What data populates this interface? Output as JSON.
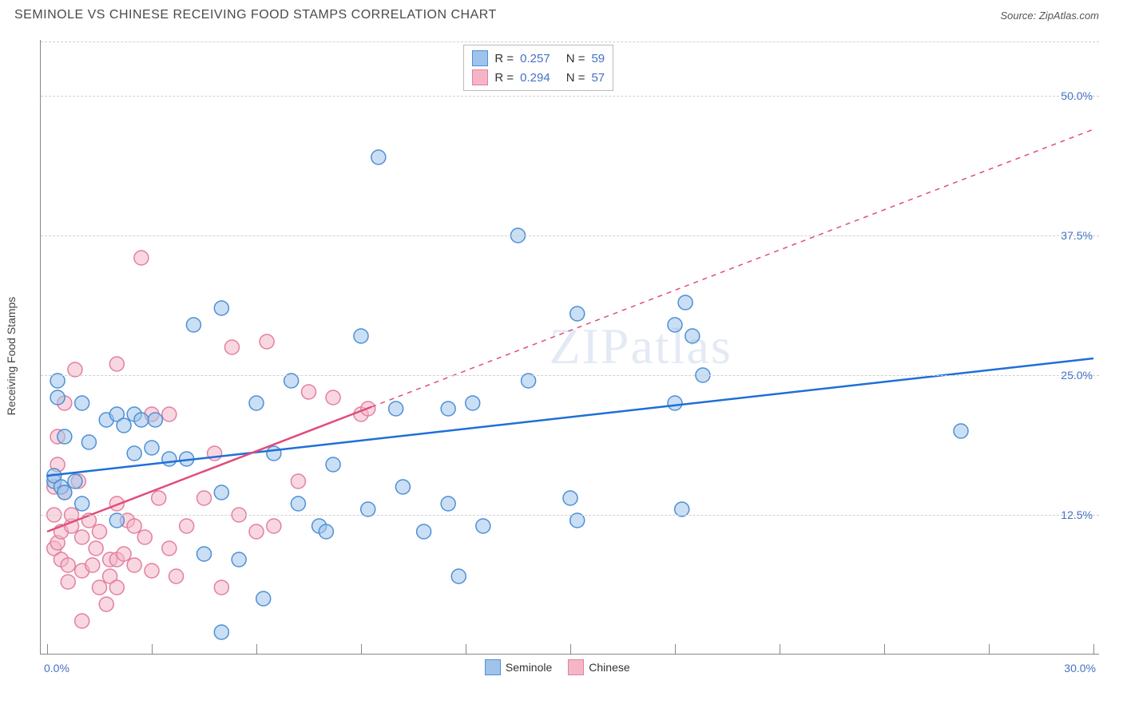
{
  "header": {
    "title": "SEMINOLE VS CHINESE RECEIVING FOOD STAMPS CORRELATION CHART",
    "source": "Source: ZipAtlas.com"
  },
  "chart": {
    "type": "scatter",
    "background_color": "#ffffff",
    "grid_color": "#d0d0d0",
    "axis_color": "#888888",
    "watermark_text": "ZIPatlas",
    "watermark_color": "rgba(130,160,210,0.22)",
    "watermark_fontsize": 64,
    "yaxis_title": "Receiving Food Stamps",
    "label_fontsize": 14,
    "tick_label_color": "#4472c4",
    "xlim": [
      0,
      30
    ],
    "ylim": [
      0,
      55
    ],
    "y_ticks": [
      {
        "v": 12.5,
        "label": "12.5%"
      },
      {
        "v": 25.0,
        "label": "25.0%"
      },
      {
        "v": 37.5,
        "label": "37.5%"
      },
      {
        "v": 50.0,
        "label": "50.0%"
      }
    ],
    "x_tick_values": [
      0,
      3,
      6,
      9,
      12,
      15,
      18,
      21,
      24,
      27,
      30
    ],
    "x_tick_labels": {
      "left": "0.0%",
      "right": "30.0%"
    },
    "marker_radius": 9,
    "marker_opacity": 0.55,
    "series": [
      {
        "name": "Seminole",
        "color_fill": "#9ec4eb",
        "color_stroke": "#4e8fd6",
        "trend_color": "#1f6fd8",
        "trend_width": 2.5,
        "trend_dash_after_x": 9999,
        "points": [
          [
            0.2,
            15.5
          ],
          [
            0.2,
            16.0
          ],
          [
            0.3,
            24.5
          ],
          [
            0.4,
            15.0
          ],
          [
            0.5,
            14.5
          ],
          [
            0.5,
            19.5
          ],
          [
            1.0,
            22.5
          ],
          [
            1.0,
            13.5
          ],
          [
            1.2,
            19.0
          ],
          [
            1.7,
            21.0
          ],
          [
            2.0,
            21.5
          ],
          [
            2.0,
            12.0
          ],
          [
            2.2,
            20.5
          ],
          [
            2.5,
            18.0
          ],
          [
            2.5,
            21.5
          ],
          [
            2.7,
            21.0
          ],
          [
            3.0,
            18.5
          ],
          [
            3.1,
            21.0
          ],
          [
            3.5,
            17.5
          ],
          [
            4.0,
            17.5
          ],
          [
            4.2,
            29.5
          ],
          [
            4.5,
            9.0
          ],
          [
            5.0,
            14.5
          ],
          [
            5.0,
            2.0
          ],
          [
            5.0,
            31.0
          ],
          [
            5.5,
            8.5
          ],
          [
            6.0,
            22.5
          ],
          [
            6.2,
            5.0
          ],
          [
            6.5,
            18.0
          ],
          [
            7.0,
            24.5
          ],
          [
            7.2,
            13.5
          ],
          [
            7.8,
            11.5
          ],
          [
            8.0,
            11.0
          ],
          [
            8.2,
            17.0
          ],
          [
            9.0,
            28.5
          ],
          [
            9.2,
            13.0
          ],
          [
            9.5,
            44.5
          ],
          [
            10.0,
            22.0
          ],
          [
            10.2,
            15.0
          ],
          [
            10.8,
            11.0
          ],
          [
            11.5,
            13.5
          ],
          [
            11.5,
            22.0
          ],
          [
            11.8,
            7.0
          ],
          [
            12.2,
            22.5
          ],
          [
            12.5,
            11.5
          ],
          [
            13.5,
            37.5
          ],
          [
            13.8,
            24.5
          ],
          [
            15.0,
            14.0
          ],
          [
            15.2,
            12.0
          ],
          [
            15.2,
            30.5
          ],
          [
            18.0,
            22.5
          ],
          [
            18.0,
            29.5
          ],
          [
            18.2,
            13.0
          ],
          [
            18.3,
            31.5
          ],
          [
            18.5,
            28.5
          ],
          [
            18.8,
            25.0
          ],
          [
            26.2,
            20.0
          ],
          [
            0.3,
            23.0
          ],
          [
            0.8,
            15.5
          ]
        ],
        "trend": {
          "y_at_x0": 16.0,
          "y_at_xmax": 26.5
        }
      },
      {
        "name": "Chinese",
        "color_fill": "#f4b6c6",
        "color_stroke": "#e37fa1",
        "trend_color": "#e14d7a",
        "trend_width": 2.5,
        "trend_dash_after_x": 9.3,
        "points": [
          [
            0.2,
            9.5
          ],
          [
            0.2,
            12.5
          ],
          [
            0.2,
            15.0
          ],
          [
            0.3,
            10.0
          ],
          [
            0.3,
            17.0
          ],
          [
            0.3,
            19.5
          ],
          [
            0.4,
            11.0
          ],
          [
            0.4,
            8.5
          ],
          [
            0.5,
            14.5
          ],
          [
            0.5,
            22.5
          ],
          [
            0.6,
            6.5
          ],
          [
            0.6,
            8.0
          ],
          [
            0.7,
            11.5
          ],
          [
            0.7,
            12.5
          ],
          [
            0.8,
            25.5
          ],
          [
            0.9,
            15.5
          ],
          [
            1.0,
            3.0
          ],
          [
            1.0,
            7.5
          ],
          [
            1.0,
            10.5
          ],
          [
            1.2,
            12.0
          ],
          [
            1.3,
            8.0
          ],
          [
            1.4,
            9.5
          ],
          [
            1.5,
            6.0
          ],
          [
            1.5,
            11.0
          ],
          [
            1.7,
            4.5
          ],
          [
            1.8,
            8.5
          ],
          [
            1.8,
            7.0
          ],
          [
            2.0,
            13.5
          ],
          [
            2.0,
            8.5
          ],
          [
            2.0,
            6.0
          ],
          [
            2.0,
            26.0
          ],
          [
            2.2,
            9.0
          ],
          [
            2.3,
            12.0
          ],
          [
            2.5,
            8.0
          ],
          [
            2.5,
            11.5
          ],
          [
            2.7,
            35.5
          ],
          [
            2.8,
            10.5
          ],
          [
            3.0,
            21.5
          ],
          [
            3.0,
            7.5
          ],
          [
            3.2,
            14.0
          ],
          [
            3.5,
            9.5
          ],
          [
            3.5,
            21.5
          ],
          [
            3.7,
            7.0
          ],
          [
            4.0,
            11.5
          ],
          [
            4.5,
            14.0
          ],
          [
            4.8,
            18.0
          ],
          [
            5.0,
            6.0
          ],
          [
            5.3,
            27.5
          ],
          [
            5.5,
            12.5
          ],
          [
            6.0,
            11.0
          ],
          [
            6.3,
            28.0
          ],
          [
            6.5,
            11.5
          ],
          [
            7.2,
            15.5
          ],
          [
            7.5,
            23.5
          ],
          [
            8.2,
            23.0
          ],
          [
            9.0,
            21.5
          ],
          [
            9.2,
            22.0
          ]
        ],
        "trend": {
          "y_at_x0": 11.0,
          "y_at_xmax": 47.0
        }
      }
    ],
    "stats_legend": {
      "border_color": "#bbbbbb",
      "fontsize": 15,
      "rows": [
        {
          "swatch_fill": "#9ec4eb",
          "swatch_stroke": "#4e8fd6",
          "R": "0.257",
          "N": "59"
        },
        {
          "swatch_fill": "#f4b6c6",
          "swatch_stroke": "#e37fa1",
          "R": "0.294",
          "N": "57"
        }
      ]
    },
    "series_legend": {
      "items": [
        {
          "swatch_fill": "#9ec4eb",
          "swatch_stroke": "#4e8fd6",
          "label": "Seminole"
        },
        {
          "swatch_fill": "#f4b6c6",
          "swatch_stroke": "#e37fa1",
          "label": "Chinese"
        }
      ]
    }
  }
}
